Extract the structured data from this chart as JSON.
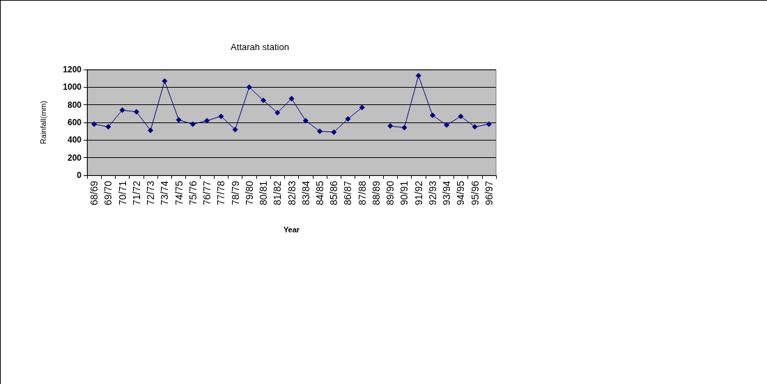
{
  "chart_data": {
    "type": "line",
    "title": "Attarah station",
    "xlabel": "Year",
    "ylabel": "Rainfall(mm)",
    "categories": [
      "68/69",
      "69/70",
      "70/71",
      "71/72",
      "72/73",
      "73/74",
      "74/75",
      "75/76",
      "76/77",
      "77/78",
      "78/79",
      "79/80",
      "80/81",
      "81/82",
      "82/83",
      "83/84",
      "84/85",
      "85/86",
      "86/87",
      "87/88",
      "88/89",
      "89/90",
      "90/91",
      "91/92",
      "92/93",
      "93/94",
      "94/95",
      "95/96",
      "96/97"
    ],
    "series": [
      {
        "color": "#000080",
        "values": [
          580,
          550,
          740,
          720,
          510,
          1070,
          630,
          580,
          620,
          670,
          520,
          1000,
          850,
          710,
          870,
          620,
          500,
          490,
          640,
          770,
          null,
          560,
          540,
          1130,
          680,
          570,
          670,
          550,
          580
        ]
      }
    ],
    "ylim": [
      0,
      1200
    ],
    "yticks": [
      0,
      200,
      400,
      600,
      800,
      1000,
      1200
    ],
    "grid": "y",
    "marker": "diamond",
    "line_style": "solid"
  }
}
